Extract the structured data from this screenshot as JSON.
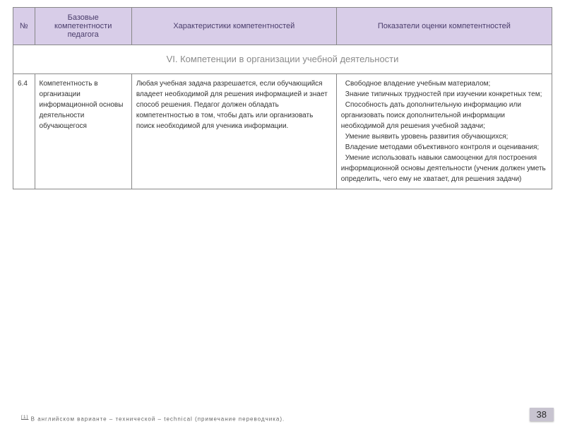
{
  "table": {
    "headers": {
      "num": "№",
      "competence": "Базовые компетентности педагога",
      "characteristics": "Характеристики компетентностей",
      "indicators": "Показатели оценки компетентностей"
    },
    "section_title": "VI. Компетенции в организации учебной деятельности",
    "row": {
      "num": "6.4",
      "competence": "Компетентность в организации информационной основы деятельности обучающегося",
      "characteristics": "Любая учебная задача разрешается, если обучающийся владеет необходимой для решения информацией и знает способ решения. Педагог должен обладать компетентностью в том, чтобы дать или организовать поиск необходимой для ученика информации.",
      "indicators": [
        "Свободное владение учебным материалом;",
        "Знание типичных трудностей при изучении конкретных тем;",
        "Способность дать дополнительную информацию или организовать поиск дополнительной информации необходимой для решения учебной задачи;",
        "Умение выявить уровень развития обучающихся;",
        "Владение методами объективного контроля и оценивания;",
        "Умение использовать навыки самооценки для построения информационной основы деятельности (ученик должен уметь определить, чего ему не хватает, для решения задачи)"
      ]
    }
  },
  "footnote_ref": "[1]",
  "footnote_text": " В английском варианте – технической – technical (примечание переводчика).",
  "page_number": "38",
  "colors": {
    "header_bg": "#d8cde8",
    "header_text": "#4a3d6b",
    "section_text": "#8a8a8a",
    "border": "#888888",
    "body_text": "#333333",
    "pagenum_bg": "#c8c4d0"
  },
  "fonts": {
    "body_size": 10,
    "header_size": 11,
    "section_size": 13
  }
}
